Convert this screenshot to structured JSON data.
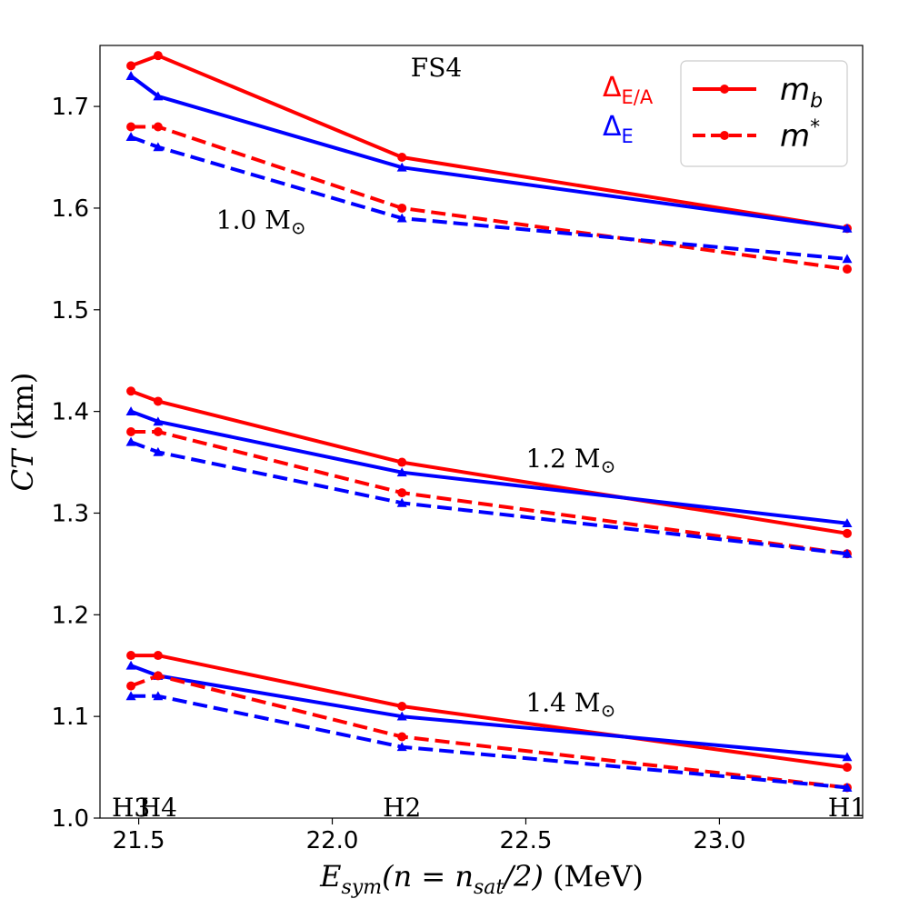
{
  "chart_data": {
    "type": "line",
    "title": "FS4",
    "xlabel_parts": {
      "var": "E",
      "sub": "sym",
      "arg": "(n = n",
      "argsub": "sat",
      "argend": "/2)",
      "unit": " (MeV)"
    },
    "ylabel_parts": {
      "var": "CT",
      "unit": " (km)"
    },
    "xlim": [
      21.4,
      23.37
    ],
    "ylim": [
      1.0,
      1.76
    ],
    "xticks": [
      21.5,
      22.0,
      22.5,
      23.0
    ],
    "xtick_labels": [
      "21.5",
      "22.0",
      "22.5",
      "23.0"
    ],
    "yticks": [
      1.0,
      1.1,
      1.2,
      1.3,
      1.4,
      1.5,
      1.6,
      1.7
    ],
    "ytick_labels": [
      "1.0",
      "1.1",
      "1.2",
      "1.3",
      "1.4",
      "1.5",
      "1.6",
      "1.7"
    ],
    "x": [
      21.48,
      21.55,
      22.18,
      23.33
    ],
    "model_labels": [
      {
        "text": "H3",
        "x": 21.48
      },
      {
        "text": "H4",
        "x": 21.55
      },
      {
        "text": "H2",
        "x": 22.18
      },
      {
        "text": "H1",
        "x": 23.33
      }
    ],
    "mass_labels": [
      {
        "text": "1.0 M",
        "symbol": "⊙",
        "x": 21.7,
        "y": 1.58
      },
      {
        "text": "1.2 M",
        "symbol": "⊙",
        "x": 22.5,
        "y": 1.345
      },
      {
        "text": "1.4 M",
        "symbol": "⊙",
        "x": 22.5,
        "y": 1.105
      }
    ],
    "series": [
      {
        "name": "1.0 Msun, Δ_E/A, m_b",
        "color": "#ff0000",
        "dash": false,
        "marker": "circle",
        "values": [
          1.74,
          1.75,
          1.65,
          1.58
        ]
      },
      {
        "name": "1.0 Msun, Δ_E, m_b",
        "color": "#0000ff",
        "dash": false,
        "marker": "triangle",
        "values": [
          1.73,
          1.71,
          1.64,
          1.58
        ]
      },
      {
        "name": "1.0 Msun, Δ_E/A, m*",
        "color": "#ff0000",
        "dash": true,
        "marker": "circle",
        "values": [
          1.68,
          1.68,
          1.6,
          1.54
        ]
      },
      {
        "name": "1.0 Msun, Δ_E, m*",
        "color": "#0000ff",
        "dash": true,
        "marker": "triangle",
        "values": [
          1.67,
          1.66,
          1.59,
          1.55
        ]
      },
      {
        "name": "1.2 Msun, Δ_E/A, m_b",
        "color": "#ff0000",
        "dash": false,
        "marker": "circle",
        "values": [
          1.42,
          1.41,
          1.35,
          1.28
        ]
      },
      {
        "name": "1.2 Msun, Δ_E, m_b",
        "color": "#0000ff",
        "dash": false,
        "marker": "triangle",
        "values": [
          1.4,
          1.39,
          1.34,
          1.29
        ]
      },
      {
        "name": "1.2 Msun, Δ_E/A, m*",
        "color": "#ff0000",
        "dash": true,
        "marker": "circle",
        "values": [
          1.38,
          1.38,
          1.32,
          1.26
        ]
      },
      {
        "name": "1.2 Msun, Δ_E, m*",
        "color": "#0000ff",
        "dash": true,
        "marker": "triangle",
        "values": [
          1.37,
          1.36,
          1.31,
          1.26
        ]
      },
      {
        "name": "1.4 Msun, Δ_E/A, m_b",
        "color": "#ff0000",
        "dash": false,
        "marker": "circle",
        "values": [
          1.16,
          1.16,
          1.11,
          1.05
        ]
      },
      {
        "name": "1.4 Msun, Δ_E, m_b",
        "color": "#0000ff",
        "dash": false,
        "marker": "triangle",
        "values": [
          1.15,
          1.14,
          1.1,
          1.06
        ]
      },
      {
        "name": "1.4 Msun, Δ_E/A, m*",
        "color": "#ff0000",
        "dash": true,
        "marker": "circle",
        "values": [
          1.13,
          1.14,
          1.08,
          1.03
        ]
      },
      {
        "name": "1.4 Msun, Δ_E, m*",
        "color": "#0000ff",
        "dash": true,
        "marker": "triangle",
        "values": [
          1.12,
          1.12,
          1.07,
          1.03
        ]
      }
    ],
    "delta_labels": [
      {
        "main": "Δ",
        "sub": "E/A",
        "color": "#ff0000"
      },
      {
        "main": "Δ",
        "sub": "E",
        "color": "#0000ff"
      }
    ],
    "legend": {
      "position": "top-right",
      "entries": [
        {
          "var": "m",
          "sub": "b",
          "sup": "",
          "dash": false,
          "color": "#ff0000"
        },
        {
          "var": "m",
          "sub": "",
          "sup": "*",
          "dash": true,
          "color": "#ff0000"
        }
      ]
    }
  }
}
